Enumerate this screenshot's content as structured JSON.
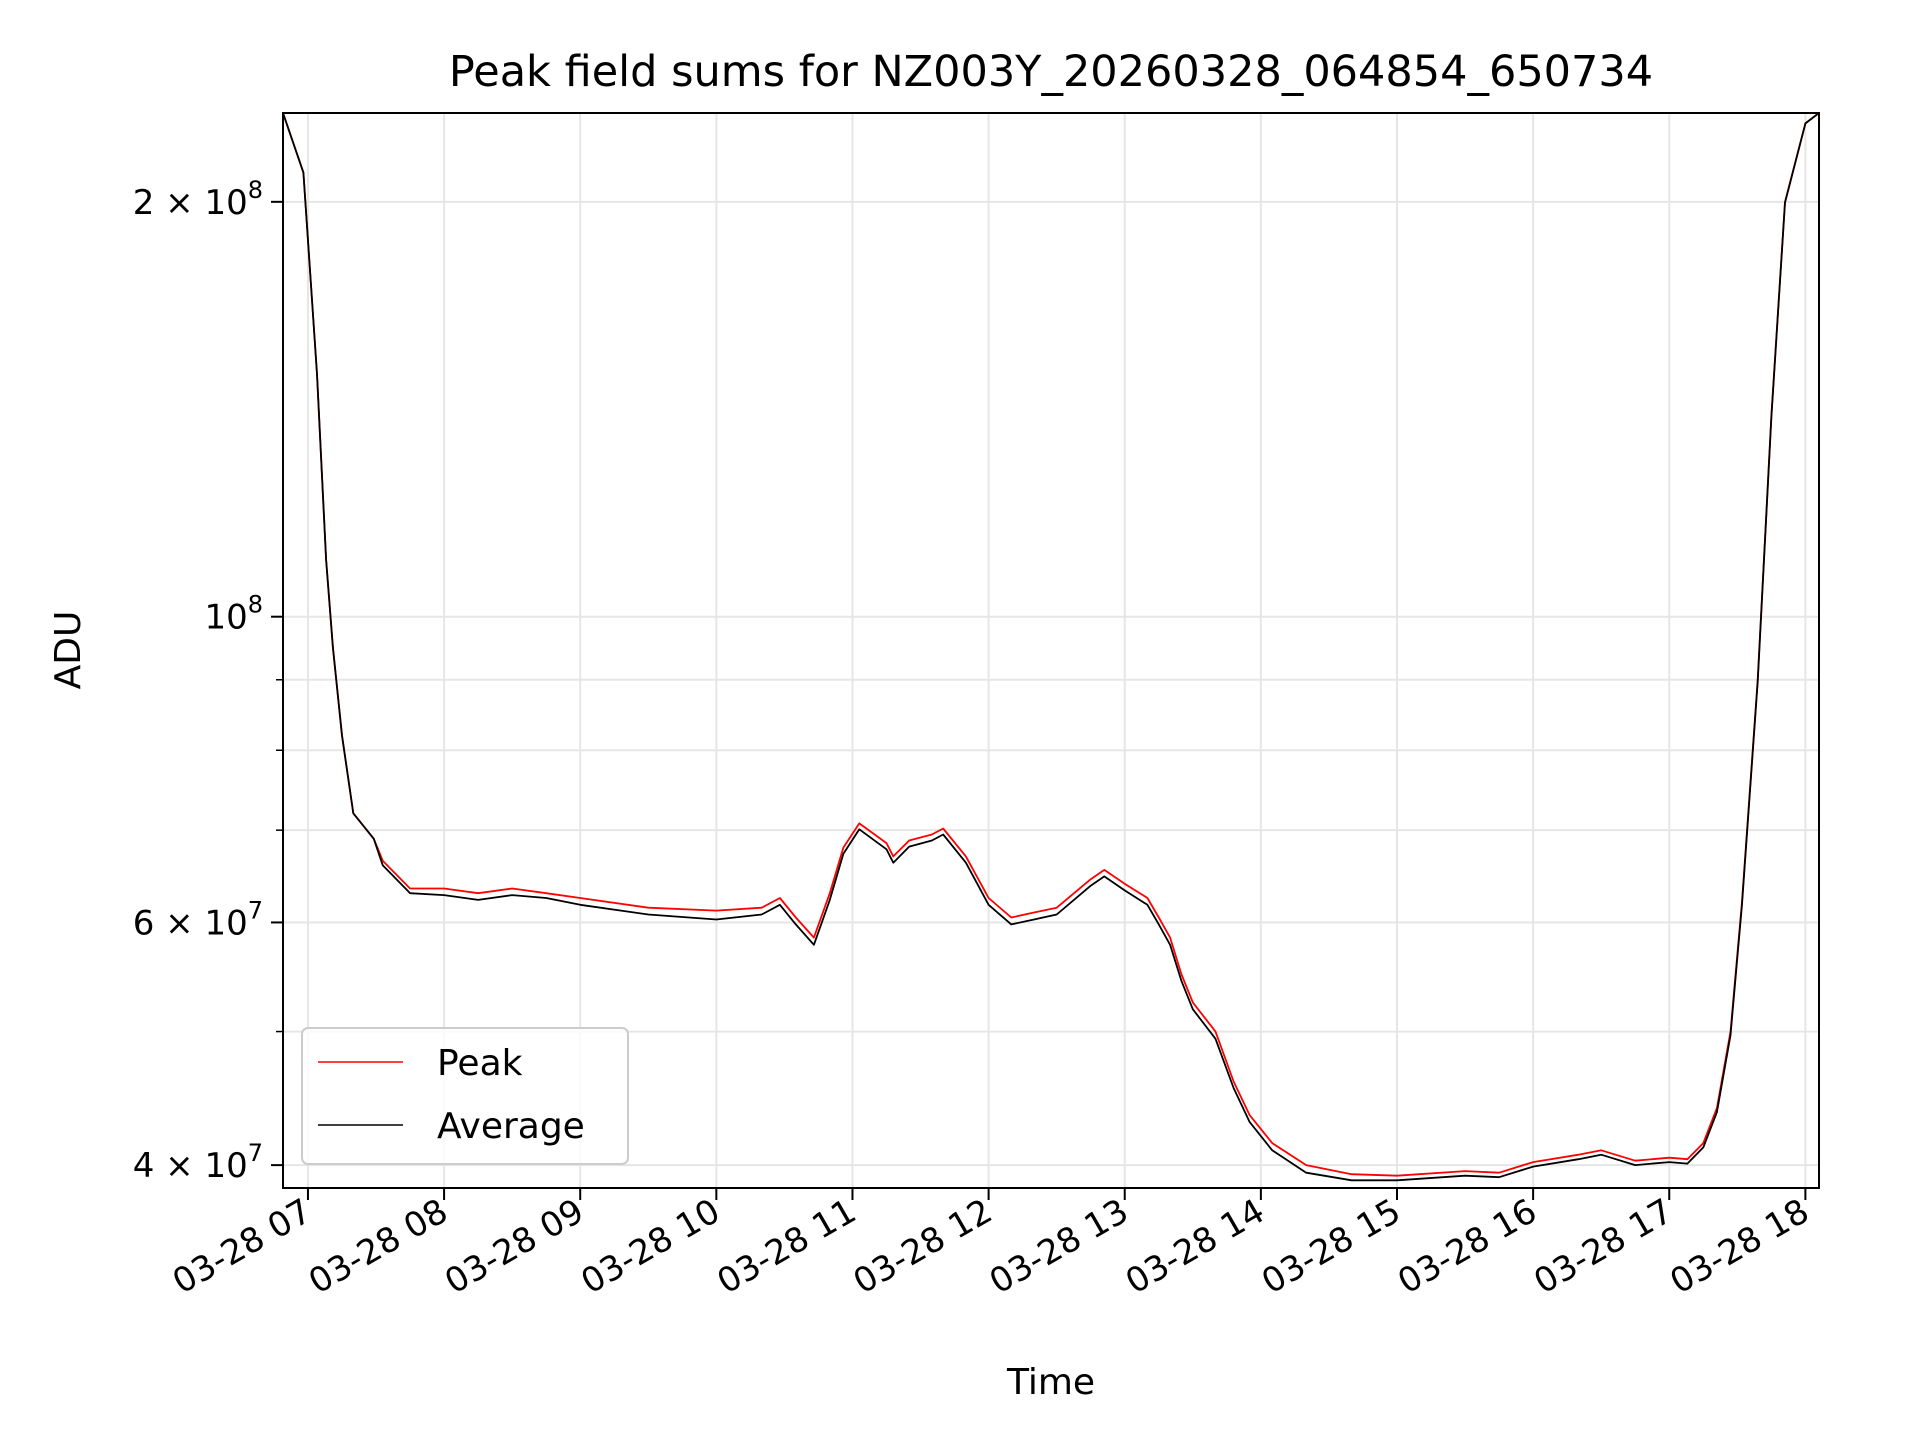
{
  "chart_data": {
    "type": "line",
    "title": "Peak field sums for NZ003Y_20260328_064854_650734",
    "xlabel": "Time",
    "ylabel": "ADU",
    "y_scale": "log",
    "grid": true,
    "legend_position": "lower-left",
    "xlim": [
      "2026-03-28 06:49",
      "2026-03-28 18:06"
    ],
    "ylim": [
      38500000,
      232000000
    ],
    "x_ticks": [
      {
        "value": "2026-03-28 07:00",
        "label": "03-28 07"
      },
      {
        "value": "2026-03-28 08:00",
        "label": "03-28 08"
      },
      {
        "value": "2026-03-28 09:00",
        "label": "03-28 09"
      },
      {
        "value": "2026-03-28 10:00",
        "label": "03-28 10"
      },
      {
        "value": "2026-03-28 11:00",
        "label": "03-28 11"
      },
      {
        "value": "2026-03-28 12:00",
        "label": "03-28 12"
      },
      {
        "value": "2026-03-28 13:00",
        "label": "03-28 13"
      },
      {
        "value": "2026-03-28 14:00",
        "label": "03-28 14"
      },
      {
        "value": "2026-03-28 15:00",
        "label": "03-28 15"
      },
      {
        "value": "2026-03-28 16:00",
        "label": "03-28 16"
      },
      {
        "value": "2026-03-28 17:00",
        "label": "03-28 17"
      },
      {
        "value": "2026-03-28 18:00",
        "label": "03-28 18"
      }
    ],
    "y_major_ticks": [
      {
        "value": 40000000,
        "base": "4 × 10",
        "exp": "7"
      },
      {
        "value": 60000000,
        "base": "6 × 10",
        "exp": "7"
      },
      {
        "value": 100000000,
        "base": "10",
        "exp": "8"
      },
      {
        "value": 200000000,
        "base": "2 × 10",
        "exp": "8"
      }
    ],
    "y_minor_ticks": [
      50000000,
      70000000,
      80000000,
      90000000
    ],
    "series": [
      {
        "name": "Peak",
        "color": "#ff0000",
        "points": [
          [
            "2026-03-28 06:49",
            232000000
          ],
          [
            "2026-03-28 06:58",
            210000000
          ],
          [
            "2026-03-28 07:04",
            150000000
          ],
          [
            "2026-03-28 07:08",
            110000000
          ],
          [
            "2026-03-28 07:11",
            95000000
          ],
          [
            "2026-03-28 07:15",
            82000000
          ],
          [
            "2026-03-28 07:20",
            72000000
          ],
          [
            "2026-03-28 07:29",
            69000000
          ],
          [
            "2026-03-28 07:33",
            66500000
          ],
          [
            "2026-03-28 07:45",
            63500000
          ],
          [
            "2026-03-28 08:00",
            63500000
          ],
          [
            "2026-03-28 08:15",
            63000000
          ],
          [
            "2026-03-28 08:30",
            63500000
          ],
          [
            "2026-03-28 08:45",
            63000000
          ],
          [
            "2026-03-28 09:00",
            62500000
          ],
          [
            "2026-03-28 09:30",
            61500000
          ],
          [
            "2026-03-28 10:00",
            61200000
          ],
          [
            "2026-03-28 10:20",
            61500000
          ],
          [
            "2026-03-28 10:28",
            62500000
          ],
          [
            "2026-03-28 10:35",
            60500000
          ],
          [
            "2026-03-28 10:43",
            58500000
          ],
          [
            "2026-03-28 10:50",
            63000000
          ],
          [
            "2026-03-28 10:56",
            68000000
          ],
          [
            "2026-03-28 11:03",
            70800000
          ],
          [
            "2026-03-28 11:15",
            68500000
          ],
          [
            "2026-03-28 11:18",
            67000000
          ],
          [
            "2026-03-28 11:25",
            68800000
          ],
          [
            "2026-03-28 11:35",
            69500000
          ],
          [
            "2026-03-28 11:40",
            70200000
          ],
          [
            "2026-03-28 11:50",
            67000000
          ],
          [
            "2026-03-28 12:00",
            62500000
          ],
          [
            "2026-03-28 12:10",
            60500000
          ],
          [
            "2026-03-28 12:20",
            61000000
          ],
          [
            "2026-03-28 12:30",
            61500000
          ],
          [
            "2026-03-28 12:45",
            64500000
          ],
          [
            "2026-03-28 12:51",
            65500000
          ],
          [
            "2026-03-28 13:00",
            64000000
          ],
          [
            "2026-03-28 13:10",
            62500000
          ],
          [
            "2026-03-28 13:15",
            60500000
          ],
          [
            "2026-03-28 13:20",
            58500000
          ],
          [
            "2026-03-28 13:25",
            55000000
          ],
          [
            "2026-03-28 13:30",
            52500000
          ],
          [
            "2026-03-28 13:40",
            50000000
          ],
          [
            "2026-03-28 13:48",
            46000000
          ],
          [
            "2026-03-28 13:55",
            43500000
          ],
          [
            "2026-03-28 14:05",
            41500000
          ],
          [
            "2026-03-28 14:20",
            40000000
          ],
          [
            "2026-03-28 14:40",
            39400000
          ],
          [
            "2026-03-28 15:00",
            39300000
          ],
          [
            "2026-03-28 15:30",
            39600000
          ],
          [
            "2026-03-28 15:45",
            39500000
          ],
          [
            "2026-03-28 16:00",
            40200000
          ],
          [
            "2026-03-28 16:20",
            40700000
          ],
          [
            "2026-03-28 16:30",
            41000000
          ],
          [
            "2026-03-28 16:45",
            40300000
          ],
          [
            "2026-03-28 17:00",
            40500000
          ],
          [
            "2026-03-28 17:08",
            40400000
          ],
          [
            "2026-03-28 17:15",
            41500000
          ],
          [
            "2026-03-28 17:21",
            44000000
          ],
          [
            "2026-03-28 17:27",
            50000000
          ],
          [
            "2026-03-28 17:32",
            62000000
          ],
          [
            "2026-03-28 17:39",
            90000000
          ],
          [
            "2026-03-28 17:45",
            140000000
          ],
          [
            "2026-03-28 17:51",
            200000000
          ],
          [
            "2026-03-28 18:00",
            228000000
          ],
          [
            "2026-03-28 18:06",
            232000000
          ]
        ]
      },
      {
        "name": "Average",
        "color": "#000000",
        "points": [
          [
            "2026-03-28 06:49",
            232000000
          ],
          [
            "2026-03-28 06:58",
            210000000
          ],
          [
            "2026-03-28 07:04",
            150000000
          ],
          [
            "2026-03-28 07:08",
            110000000
          ],
          [
            "2026-03-28 07:11",
            95000000
          ],
          [
            "2026-03-28 07:15",
            82000000
          ],
          [
            "2026-03-28 07:20",
            72000000
          ],
          [
            "2026-03-28 07:29",
            69000000
          ],
          [
            "2026-03-28 07:33",
            66000000
          ],
          [
            "2026-03-28 07:45",
            63000000
          ],
          [
            "2026-03-28 08:00",
            62800000
          ],
          [
            "2026-03-28 08:15",
            62300000
          ],
          [
            "2026-03-28 08:30",
            62800000
          ],
          [
            "2026-03-28 08:45",
            62500000
          ],
          [
            "2026-03-28 09:00",
            61800000
          ],
          [
            "2026-03-28 09:30",
            60800000
          ],
          [
            "2026-03-28 10:00",
            60300000
          ],
          [
            "2026-03-28 10:20",
            60800000
          ],
          [
            "2026-03-28 10:28",
            61800000
          ],
          [
            "2026-03-28 10:35",
            59800000
          ],
          [
            "2026-03-28 10:43",
            57800000
          ],
          [
            "2026-03-28 10:50",
            62300000
          ],
          [
            "2026-03-28 10:56",
            67300000
          ],
          [
            "2026-03-28 11:03",
            70100000
          ],
          [
            "2026-03-28 11:15",
            67800000
          ],
          [
            "2026-03-28 11:18",
            66300000
          ],
          [
            "2026-03-28 11:25",
            68100000
          ],
          [
            "2026-03-28 11:35",
            68800000
          ],
          [
            "2026-03-28 11:40",
            69500000
          ],
          [
            "2026-03-28 11:50",
            66300000
          ],
          [
            "2026-03-28 12:00",
            61800000
          ],
          [
            "2026-03-28 12:10",
            59800000
          ],
          [
            "2026-03-28 12:20",
            60300000
          ],
          [
            "2026-03-28 12:30",
            60800000
          ],
          [
            "2026-03-28 12:45",
            63800000
          ],
          [
            "2026-03-28 12:51",
            64800000
          ],
          [
            "2026-03-28 13:00",
            63300000
          ],
          [
            "2026-03-28 13:10",
            61800000
          ],
          [
            "2026-03-28 13:15",
            59800000
          ],
          [
            "2026-03-28 13:20",
            57800000
          ],
          [
            "2026-03-28 13:25",
            54400000
          ],
          [
            "2026-03-28 13:30",
            51900000
          ],
          [
            "2026-03-28 13:40",
            49400000
          ],
          [
            "2026-03-28 13:48",
            45500000
          ],
          [
            "2026-03-28 13:55",
            43000000
          ],
          [
            "2026-03-28 14:05",
            41000000
          ],
          [
            "2026-03-28 14:20",
            39500000
          ],
          [
            "2026-03-28 14:40",
            39000000
          ],
          [
            "2026-03-28 15:00",
            39000000
          ],
          [
            "2026-03-28 15:30",
            39300000
          ],
          [
            "2026-03-28 15:45",
            39200000
          ],
          [
            "2026-03-28 16:00",
            39900000
          ],
          [
            "2026-03-28 16:20",
            40400000
          ],
          [
            "2026-03-28 16:30",
            40700000
          ],
          [
            "2026-03-28 16:45",
            40000000
          ],
          [
            "2026-03-28 17:00",
            40200000
          ],
          [
            "2026-03-28 17:08",
            40100000
          ],
          [
            "2026-03-28 17:15",
            41200000
          ],
          [
            "2026-03-28 17:21",
            43700000
          ],
          [
            "2026-03-28 17:27",
            49700000
          ],
          [
            "2026-03-28 17:32",
            61700000
          ],
          [
            "2026-03-28 17:39",
            89700000
          ],
          [
            "2026-03-28 17:45",
            139700000
          ],
          [
            "2026-03-28 17:51",
            199700000
          ],
          [
            "2026-03-28 18:00",
            228000000
          ],
          [
            "2026-03-28 18:06",
            232000000
          ]
        ]
      }
    ]
  }
}
